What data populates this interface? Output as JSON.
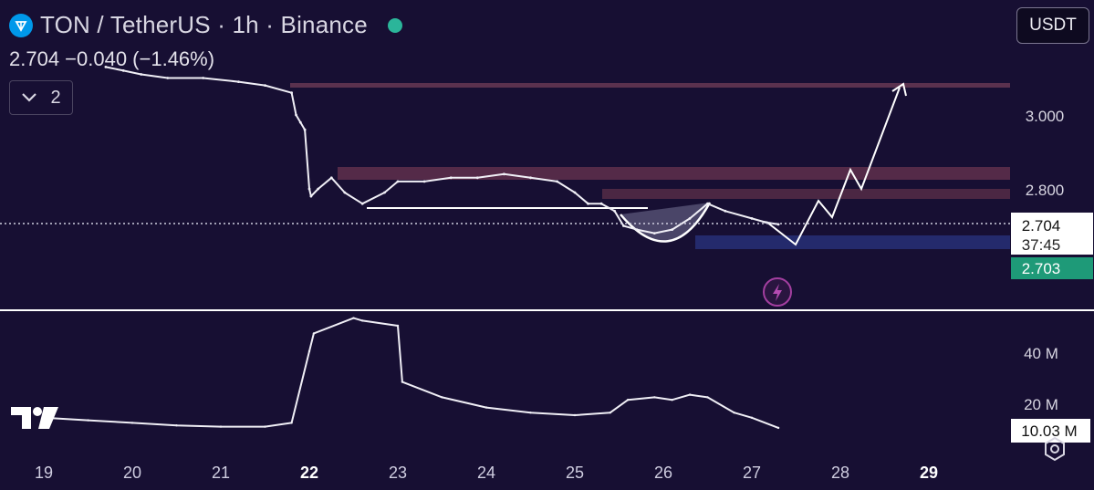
{
  "header": {
    "symbol_title": "TON / TetherUS · 1h · Binance",
    "price_change": "2.704 −0.040 (−1.46%)",
    "indicator_count": "2",
    "currency": "USDT"
  },
  "chart_data": [
    {
      "type": "line",
      "title": "TON / TetherUS · 1h · Binance",
      "x_ticks": [
        "19",
        "20",
        "21",
        "22",
        "23",
        "24",
        "25",
        "26",
        "27",
        "28",
        "29"
      ],
      "y_ticks": [
        "3.000",
        "2.800"
      ],
      "ylim": [
        2.43,
        3.31
      ],
      "series": [
        {
          "x": [
            19.7,
            19.9,
            20.1,
            20.4,
            20.8,
            21.2,
            21.5,
            21.8,
            21.85,
            21.9,
            21.95,
            22.0,
            22.02,
            22.1,
            22.25,
            22.4,
            22.6,
            22.85,
            23.0,
            23.3,
            23.6,
            23.9,
            24.2,
            24.5,
            24.8,
            25.0,
            25.15,
            25.3,
            25.45,
            25.55,
            25.7,
            25.9,
            26.1,
            26.3,
            26.5,
            26.7,
            27.0,
            27.15,
            27.3
          ],
          "y": [
            3.13,
            3.12,
            3.11,
            3.1,
            3.1,
            3.09,
            3.08,
            3.06,
            3.0,
            2.98,
            2.96,
            2.8,
            2.78,
            2.8,
            2.83,
            2.79,
            2.76,
            2.79,
            2.82,
            2.82,
            2.83,
            2.83,
            2.84,
            2.83,
            2.82,
            2.79,
            2.76,
            2.76,
            2.74,
            2.7,
            2.69,
            2.68,
            2.69,
            2.72,
            2.76,
            2.74,
            2.72,
            2.71,
            2.704
          ]
        }
      ],
      "current_price": "2.704",
      "countdown": "37:45",
      "bid_price": "2.703",
      "price_color": "#ffffff",
      "bid_color": "#1e9a78"
    },
    {
      "type": "line",
      "y_ticks": [
        "40 M",
        "20 M"
      ],
      "ylim": [
        5,
        58
      ],
      "series": [
        {
          "x": [
            19.0,
            19.5,
            20.0,
            20.5,
            21.0,
            21.5,
            21.8,
            22.0,
            22.05,
            22.5,
            22.6,
            23.0,
            23.05,
            23.5,
            24.0,
            24.5,
            25.0,
            25.4,
            25.6,
            25.9,
            26.1,
            26.3,
            26.5,
            26.8,
            27.0,
            27.3
          ],
          "y": [
            14,
            13,
            12,
            11,
            10.5,
            10.5,
            12,
            40,
            47,
            53,
            52,
            50,
            28,
            22,
            18,
            16,
            15,
            16,
            21,
            22,
            21,
            23,
            22,
            16,
            14,
            10.03
          ]
        }
      ],
      "current_value": "10.03 M"
    }
  ]
}
